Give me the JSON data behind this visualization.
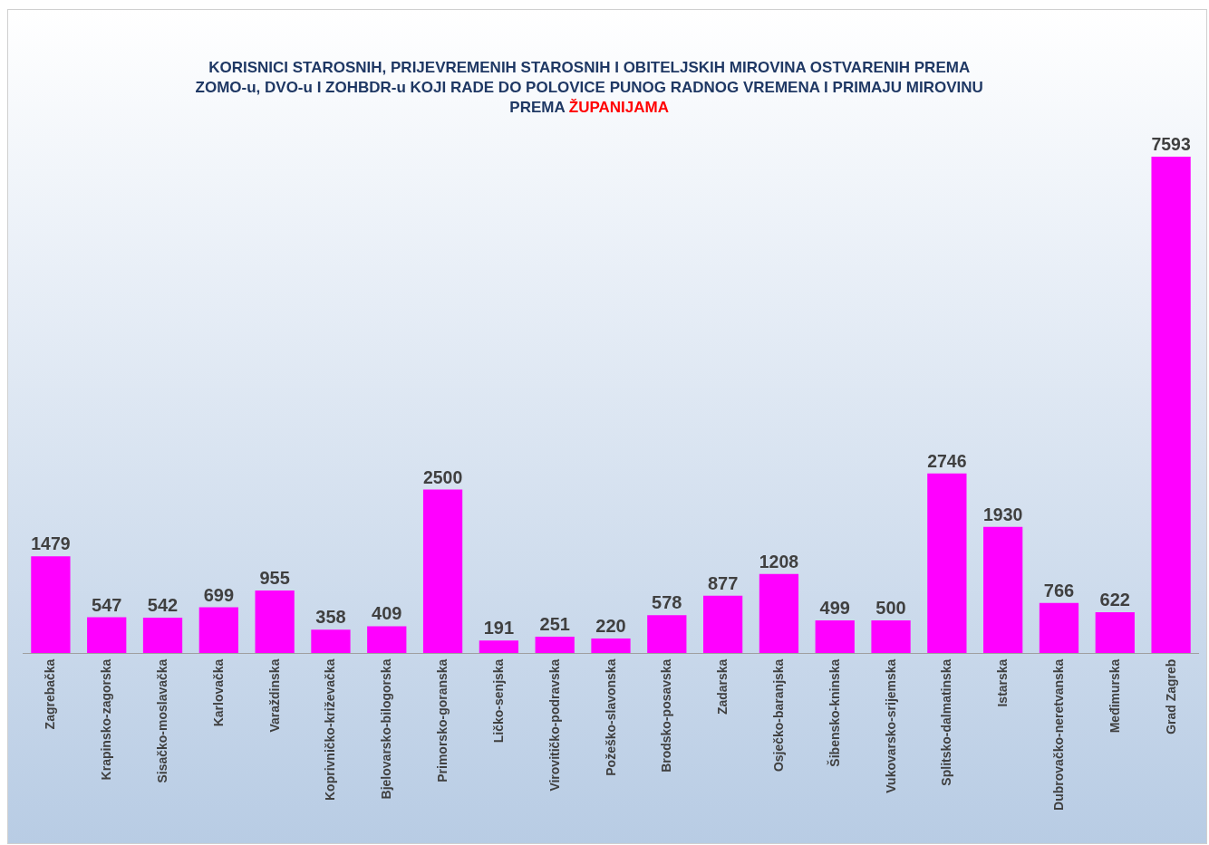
{
  "chart_data": {
    "type": "bar",
    "title": "KORISNICI STAROSNIH, PRIJEVREMENIH STAROSNIH I OBITELJSKIH MIROVINA OSTVARENIH PREMA\nZOMO-u, DVO-u I ZOHBDR-u KOJI RADE DO POLOVICE PUNOG RADNOG VREMENA I PRIMAJU MIROVINU\nPREMA ŽUPANIJAMA",
    "categories": [
      "Zagrebačka",
      "Krapinsko-zagorska",
      "Sisačko-moslavačka",
      "Karlovačka",
      "Varaždinska",
      "Koprivničko-križevačka",
      "Bjelovarsko-bilogorska",
      "Primorsko-goranska",
      "Ličko-senjska",
      "Virovitičko-podravska",
      "Požeško-slavonska",
      "Brodsko-posavska",
      "Zadarska",
      "Osječko-baranjska",
      "Šibensko-kninska",
      "Vukovarsko-srijemska",
      "Splitsko-dalmatinska",
      "Istarska",
      "Dubrovačko-neretvanska",
      "Međimurska",
      "Grad Zagreb"
    ],
    "values": [
      1479,
      547,
      542,
      699,
      955,
      358,
      409,
      2500,
      191,
      251,
      220,
      578,
      877,
      1208,
      499,
      500,
      2746,
      1930,
      766,
      622,
      7593
    ],
    "color": "#ff00ff",
    "data_labels": true
  }
}
